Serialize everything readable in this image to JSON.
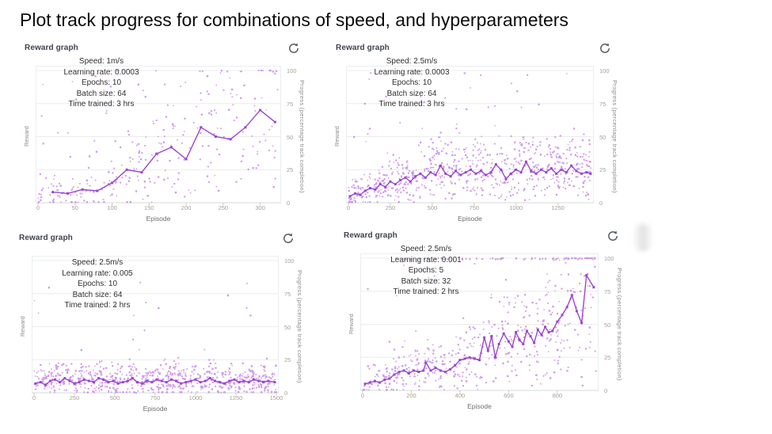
{
  "page_title": "Plot track progress for combinations of speed, and hyperparameters",
  "colors": {
    "line": "#9b45cf",
    "scatter": "#bd75e0",
    "grid": "#ececec",
    "axis": "#d5dbdb",
    "tick_text": "#a9a093",
    "header_text": "#3f4350",
    "refresh_icon": "#545b64"
  },
  "chart_data": [
    {
      "type": "scatter+line",
      "panel_label": "Reward graph",
      "icon": "refresh-icon",
      "annotation": [
        "Speed: 1m/s",
        "Learning rate: 0.0003",
        "Epochs: 10",
        "Batch size: 64",
        "Time trained: 3 hrs"
      ],
      "x_label": "Episode",
      "y_left_label": "Reward",
      "y_right_label": "Progress (percentage track completion)",
      "x_ticks": [
        0,
        50,
        100,
        150,
        200,
        250,
        300
      ],
      "x_max": 325,
      "y_ticks": [
        0,
        25,
        50,
        75,
        100
      ],
      "y_range": [
        0,
        100
      ],
      "legend": "none",
      "line_points": [
        [
          20,
          8
        ],
        [
          40,
          7
        ],
        [
          60,
          10
        ],
        [
          80,
          9
        ],
        [
          100,
          15
        ],
        [
          120,
          25
        ],
        [
          140,
          23
        ],
        [
          160,
          37
        ],
        [
          180,
          42
        ],
        [
          200,
          33
        ],
        [
          220,
          57
        ],
        [
          240,
          50
        ],
        [
          260,
          48
        ],
        [
          280,
          57
        ],
        [
          300,
          70
        ],
        [
          320,
          61
        ]
      ],
      "scatter": {
        "seed": 11,
        "n": 230,
        "mult_lo": 0.2,
        "mult_hi": 1.9,
        "jitter": 20,
        "extra_n": 55,
        "extra_exp": 0.9,
        "extra_max": 100,
        "top_n": 10,
        "top_from_frac": 0.45
      }
    },
    {
      "type": "scatter+line",
      "panel_label": "Reward graph",
      "icon": "refresh-icon",
      "annotation": [
        "Speed: 2.5m/s",
        "Learning rate: 0.0003",
        "Epochs: 10",
        "Batch size: 64",
        "Time trained: 3 hrs"
      ],
      "x_label": "Episode",
      "y_left_label": "Reward",
      "y_right_label": "Progress (percentage track completion)",
      "x_ticks": [
        0,
        250,
        500,
        750,
        1000,
        1250
      ],
      "x_max": 1450,
      "y_ticks": [
        0,
        25,
        50,
        75,
        100
      ],
      "y_range": [
        0,
        100
      ],
      "legend": "none",
      "line_points": [
        [
          10,
          5
        ],
        [
          40,
          7
        ],
        [
          70,
          6
        ],
        [
          100,
          9
        ],
        [
          130,
          11
        ],
        [
          160,
          10
        ],
        [
          190,
          14
        ],
        [
          220,
          12
        ],
        [
          250,
          16
        ],
        [
          280,
          14
        ],
        [
          310,
          17
        ],
        [
          340,
          19
        ],
        [
          370,
          16
        ],
        [
          400,
          20
        ],
        [
          430,
          22
        ],
        [
          460,
          19
        ],
        [
          490,
          23
        ],
        [
          520,
          21
        ],
        [
          550,
          28
        ],
        [
          580,
          22
        ],
        [
          610,
          20
        ],
        [
          640,
          24
        ],
        [
          670,
          21
        ],
        [
          700,
          23
        ],
        [
          730,
          25
        ],
        [
          760,
          22
        ],
        [
          790,
          24
        ],
        [
          820,
          21
        ],
        [
          850,
          23
        ],
        [
          880,
          29
        ],
        [
          910,
          25
        ],
        [
          940,
          18
        ],
        [
          970,
          22
        ],
        [
          1000,
          25
        ],
        [
          1030,
          23
        ],
        [
          1060,
          31
        ],
        [
          1090,
          24
        ],
        [
          1120,
          22
        ],
        [
          1150,
          25
        ],
        [
          1180,
          23
        ],
        [
          1210,
          26
        ],
        [
          1240,
          22
        ],
        [
          1270,
          25
        ],
        [
          1300,
          23
        ],
        [
          1330,
          28
        ],
        [
          1360,
          24
        ],
        [
          1390,
          22
        ],
        [
          1420,
          23
        ],
        [
          1445,
          22
        ]
      ],
      "scatter": {
        "seed": 22,
        "n": 620,
        "mult_lo": 0.3,
        "mult_hi": 1.9,
        "jitter": 16,
        "extra_n": 70,
        "extra_exp": 1.1,
        "extra_max": 100,
        "top_n": 0,
        "top_from_frac": 0
      }
    },
    {
      "type": "scatter+line",
      "panel_label": "Reward graph",
      "icon": "refresh-icon",
      "annotation": [
        "Speed: 2.5m/s",
        "Learning rate: 0.005",
        "Epochs: 10",
        "Batch size: 64",
        "Time trained: 2 hrs"
      ],
      "x_label": "Episode",
      "y_left_label": "Reward",
      "y_right_label": "Progress (percentage track completion)",
      "x_ticks": [
        0,
        250,
        500,
        750,
        1000,
        1250,
        1500
      ],
      "x_max": 1500,
      "y_ticks": [
        0,
        25,
        50,
        75,
        100
      ],
      "y_range": [
        0,
        100
      ],
      "legend": "none",
      "line_points": [
        [
          10,
          7
        ],
        [
          40,
          8
        ],
        [
          70,
          6
        ],
        [
          100,
          9
        ],
        [
          130,
          10
        ],
        [
          160,
          8
        ],
        [
          190,
          11
        ],
        [
          220,
          9
        ],
        [
          250,
          7
        ],
        [
          280,
          8
        ],
        [
          310,
          10
        ],
        [
          340,
          9
        ],
        [
          370,
          8
        ],
        [
          400,
          11
        ],
        [
          430,
          10
        ],
        [
          460,
          8
        ],
        [
          490,
          9
        ],
        [
          520,
          7
        ],
        [
          550,
          8
        ],
        [
          580,
          9
        ],
        [
          610,
          11
        ],
        [
          640,
          8
        ],
        [
          670,
          7
        ],
        [
          700,
          9
        ],
        [
          730,
          8
        ],
        [
          760,
          10
        ],
        [
          790,
          9
        ],
        [
          820,
          8
        ],
        [
          850,
          10
        ],
        [
          880,
          9
        ],
        [
          910,
          7
        ],
        [
          940,
          8
        ],
        [
          970,
          9
        ],
        [
          1000,
          10
        ],
        [
          1030,
          8
        ],
        [
          1060,
          9
        ],
        [
          1090,
          11
        ],
        [
          1120,
          9
        ],
        [
          1150,
          8
        ],
        [
          1180,
          7
        ],
        [
          1210,
          9
        ],
        [
          1240,
          10
        ],
        [
          1270,
          8
        ],
        [
          1300,
          9
        ],
        [
          1330,
          8
        ],
        [
          1360,
          10
        ],
        [
          1390,
          9
        ],
        [
          1420,
          8
        ],
        [
          1450,
          9
        ],
        [
          1490,
          8
        ]
      ],
      "scatter": {
        "seed": 33,
        "n": 640,
        "mult_lo": 0.2,
        "mult_hi": 2.2,
        "jitter": 10,
        "extra_n": 55,
        "extra_exp": 2.0,
        "extra_max": 90,
        "top_n": 0,
        "top_from_frac": 0
      }
    },
    {
      "type": "scatter+line",
      "panel_label": "Reward graph",
      "icon": "refresh-icon",
      "annotation": [
        "Speed: 2.5m/s",
        "Learning rate: 0.001",
        "Epochs: 5",
        "Batch size: 32",
        "Time trained: 2 hrs"
      ],
      "x_label": "Episode",
      "y_left_label": "Reward",
      "y_right_label": "Progress (percentage track completion)",
      "x_ticks": [
        0,
        200,
        400,
        600,
        800
      ],
      "x_max": 960,
      "y_ticks": [
        0,
        25,
        50,
        75,
        100
      ],
      "y_range": [
        0,
        100
      ],
      "legend": "none",
      "line_points": [
        [
          10,
          5
        ],
        [
          30,
          6
        ],
        [
          50,
          7
        ],
        [
          70,
          6
        ],
        [
          90,
          8
        ],
        [
          110,
          9
        ],
        [
          130,
          12
        ],
        [
          150,
          14
        ],
        [
          170,
          15
        ],
        [
          190,
          13
        ],
        [
          210,
          15
        ],
        [
          230,
          14
        ],
        [
          250,
          15
        ],
        [
          260,
          21
        ],
        [
          280,
          15
        ],
        [
          300,
          17
        ],
        [
          320,
          15
        ],
        [
          340,
          14
        ],
        [
          360,
          16
        ],
        [
          380,
          19
        ],
        [
          400,
          23
        ],
        [
          420,
          24
        ],
        [
          440,
          25
        ],
        [
          460,
          24
        ],
        [
          480,
          23
        ],
        [
          500,
          40
        ],
        [
          515,
          30
        ],
        [
          530,
          41
        ],
        [
          545,
          25
        ],
        [
          560,
          35
        ],
        [
          580,
          43
        ],
        [
          600,
          37
        ],
        [
          615,
          33
        ],
        [
          630,
          44
        ],
        [
          645,
          38
        ],
        [
          660,
          35
        ],
        [
          675,
          45
        ],
        [
          690,
          41
        ],
        [
          705,
          36
        ],
        [
          720,
          46
        ],
        [
          735,
          42
        ],
        [
          750,
          48
        ],
        [
          765,
          44
        ],
        [
          780,
          45
        ],
        [
          800,
          52
        ],
        [
          820,
          57
        ],
        [
          840,
          63
        ],
        [
          860,
          72
        ],
        [
          880,
          60
        ],
        [
          900,
          51
        ],
        [
          920,
          87
        ],
        [
          950,
          78
        ]
      ],
      "scatter": {
        "seed": 44,
        "n": 430,
        "mult_lo": 0.25,
        "mult_hi": 2.0,
        "jitter": 18,
        "extra_n": 45,
        "extra_exp": 1.0,
        "extra_max": 100,
        "top_n": 55,
        "top_from_frac": 0.12
      }
    }
  ]
}
